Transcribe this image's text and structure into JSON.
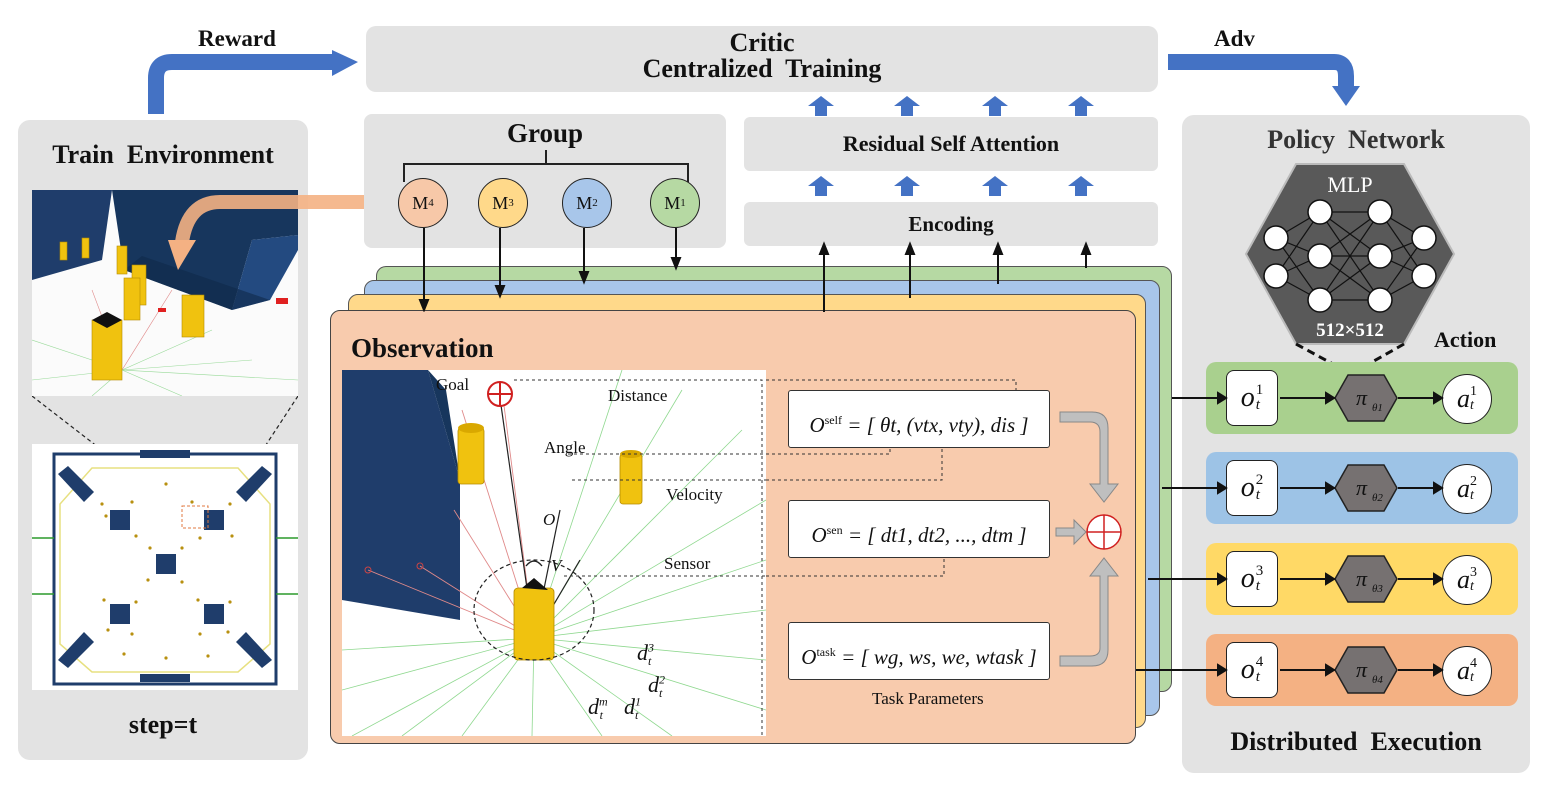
{
  "labels": {
    "reward": "Reward",
    "adv": "Adv",
    "critic": "Critic",
    "centralized_training": "Centralized  Training",
    "train_environment": "Train  Environment",
    "step": "step=t",
    "group": "Group",
    "residual_self_attention": "Residual Self Attention",
    "encoding": "Encoding",
    "policy_network": "Policy  Network",
    "mlp": "MLP",
    "mlp_size": "512×512",
    "action": "Action",
    "distributed_execution": "Distributed  Execution",
    "observation": "Observation",
    "goal": "Goal",
    "distance": "Distance",
    "angle": "Angle",
    "velocity": "Velocity",
    "sensor": "Sensor",
    "o_label": "O",
    "v_label": "V",
    "task_parameters": "Task Parameters",
    "d3": "d",
    "d2": "d",
    "dm": "d",
    "d1": "d"
  },
  "group_members": [
    {
      "label": "M",
      "sup": "4",
      "color": "#f7c8a8"
    },
    {
      "label": "M",
      "sup": "3",
      "color": "#ffd98a"
    },
    {
      "label": "M",
      "sup": "2",
      "color": "#a8c6ea"
    },
    {
      "label": "M",
      "sup": "1",
      "color": "#b6d9a3"
    }
  ],
  "formulas": {
    "self": {
      "lhs": "O",
      "sup": "self",
      "rhs": "= [ θt, (vtx, vty), dis ]"
    },
    "sen": {
      "lhs": "O",
      "sup": "sen",
      "rhs": "= [ dt1, dt2, ..., dtm ]"
    },
    "task": {
      "lhs": "O",
      "sup": "task",
      "rhs": "= [ wg, ws, we, wtask ]"
    }
  },
  "agents": [
    {
      "obs": "o",
      "index": "1",
      "policy": "π",
      "sub": "θ1",
      "action": "a",
      "color": "#a9d08e"
    },
    {
      "obs": "o",
      "index": "2",
      "policy": "π",
      "sub": "θ2",
      "action": "a",
      "color": "#9dc3e6"
    },
    {
      "obs": "o",
      "index": "3",
      "policy": "π",
      "sub": "θ3",
      "action": "a",
      "color": "#ffd966"
    },
    {
      "obs": "o",
      "index": "4",
      "policy": "π",
      "sub": "θ4",
      "action": "a",
      "color": "#f4b183"
    }
  ],
  "colors": {
    "panel_gray": "#e3e3e3",
    "arrow_blue": "#4472c4",
    "observation": "#f8cbad"
  }
}
